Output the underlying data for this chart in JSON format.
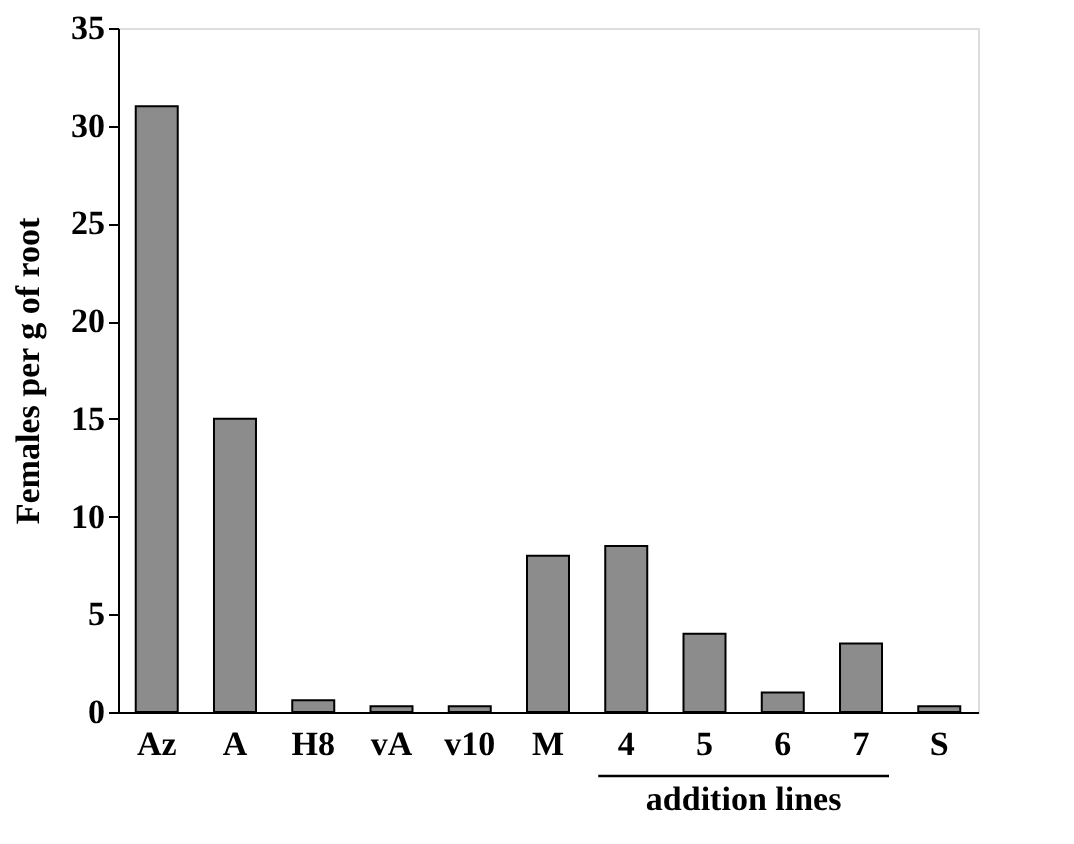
{
  "chart_data": {
    "type": "bar",
    "ylabel": "Females per g of root",
    "categories": [
      "Az",
      "A",
      "H8",
      "vA",
      "v10",
      "M",
      "4",
      "5",
      "6",
      "7",
      "S"
    ],
    "values": [
      31,
      15,
      0.6,
      0.3,
      0.3,
      8,
      8.5,
      4,
      1,
      3.5,
      0.3
    ],
    "color": "#8c8c8c",
    "ylim": [
      0,
      35
    ],
    "yticks": [
      0,
      5,
      10,
      15,
      20,
      25,
      30,
      35
    ],
    "grid": false,
    "annotations": [
      "addition lines"
    ]
  }
}
